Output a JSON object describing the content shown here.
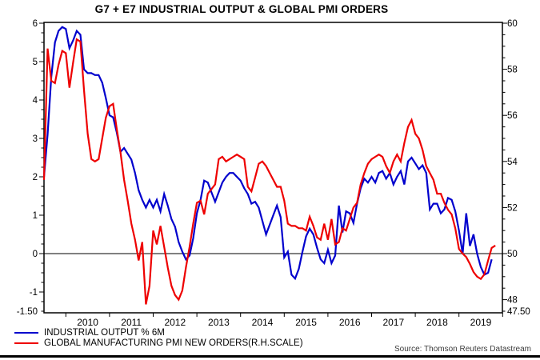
{
  "title": "G7 + E7 INDUSTRIAL OUTPUT & GLOBAL PMI ORDERS",
  "source_note": "Source: Thomson Reuters Datastream",
  "colors": {
    "industrial_output": "#0000cd",
    "pmi_orders": "#ee0000",
    "axis": "#000000",
    "source_text": "#3d3d3d"
  },
  "legend": {
    "items": [
      {
        "label": "INDUSTRIAL OUTPUT % 6M",
        "color": "#0000cd"
      },
      {
        "label": "GLOBAL MANUFACTURING PMI NEW ORDERS(R.H.SCALE)",
        "color": "#ee0000"
      }
    ]
  },
  "chart_data": {
    "type": "line",
    "title": "G7 + E7 INDUSTRIAL OUTPUT & GLOBAL PMI ORDERS",
    "x_start": "2009-07",
    "frequency": "monthly",
    "x_axis": {
      "year_labels": [
        "2010",
        "2011",
        "2012",
        "2013",
        "2014",
        "2015",
        "2016",
        "2017",
        "2018",
        "2019"
      ],
      "grid": false
    },
    "left_axis": {
      "range_bottom": -1.54,
      "range_top": 6.02,
      "major_tick_labels": [
        "6",
        "5",
        "4",
        "3",
        "2",
        "1",
        "0",
        "-1"
      ],
      "bottom_label": "-1.50",
      "minor_step": 0.25
    },
    "right_axis": {
      "range_bottom": 47.43,
      "range_top": 60.03,
      "major_tick_labels": [
        "60",
        "58",
        "56",
        "54",
        "52",
        "50",
        "48"
      ],
      "bottom_label": "47.50",
      "minor_step": 0.5
    },
    "zero_reference_left": 0,
    "series": [
      {
        "name": "INDUSTRIAL OUTPUT % 6M",
        "axis": "left",
        "color": "#0000cd",
        "values": [
          2.0,
          3.1,
          4.6,
          5.5,
          5.8,
          5.9,
          5.85,
          5.35,
          5.55,
          5.8,
          5.7,
          4.8,
          4.7,
          4.7,
          4.65,
          4.65,
          4.45,
          4.05,
          3.6,
          3.55,
          3.15,
          2.65,
          2.75,
          2.6,
          2.45,
          2.1,
          1.65,
          1.4,
          1.2,
          1.4,
          1.2,
          1.4,
          1.1,
          1.55,
          1.25,
          0.9,
          0.7,
          0.3,
          0.05,
          -0.15,
          -0.05,
          0.4,
          1.05,
          1.4,
          1.9,
          1.85,
          1.6,
          1.35,
          1.6,
          1.85,
          2.0,
          2.1,
          2.1,
          2.0,
          1.9,
          1.7,
          1.55,
          1.3,
          1.35,
          1.2,
          0.85,
          0.5,
          0.75,
          1.0,
          1.25,
          0.95,
          -0.1,
          0.05,
          -0.55,
          -0.65,
          -0.4,
          0.05,
          0.45,
          0.65,
          0.5,
          0.15,
          -0.15,
          -0.25,
          0.1,
          -0.25,
          -0.05,
          1.25,
          0.55,
          1.1,
          1.05,
          0.8,
          1.3,
          1.7,
          1.95,
          1.85,
          2.0,
          1.85,
          2.1,
          2.15,
          1.95,
          2.1,
          1.8,
          2.0,
          2.15,
          1.8,
          2.4,
          2.5,
          2.35,
          2.2,
          2.3,
          2.1,
          1.15,
          1.3,
          1.3,
          1.05,
          1.15,
          1.45,
          1.4,
          1.1,
          0.6,
          0.0,
          1.05,
          0.2,
          0.5,
          0.0,
          -0.35,
          -0.55,
          -0.5,
          -0.15
        ]
      },
      {
        "name": "GLOBAL MANUFACTURING PMI NEW ORDERS(R.H.SCALE)",
        "axis": "right",
        "color": "#ee0000",
        "values": [
          53.2,
          58.9,
          57.5,
          57.4,
          58.2,
          58.8,
          58.7,
          57.2,
          58.3,
          59.3,
          59.2,
          57.1,
          55.2,
          54.1,
          54.0,
          54.1,
          55.0,
          55.9,
          56.4,
          56.5,
          55.4,
          54.4,
          53.2,
          52.3,
          51.3,
          50.6,
          49.7,
          50.5,
          47.8,
          48.6,
          51.0,
          50.4,
          51.2,
          50.3,
          49.4,
          48.6,
          48.2,
          48.0,
          48.4,
          49.4,
          50.3,
          51.3,
          52.2,
          52.3,
          51.7,
          52.6,
          52.8,
          53.0,
          54.1,
          54.2,
          54.0,
          54.1,
          54.2,
          54.3,
          54.2,
          54.1,
          52.9,
          52.7,
          53.3,
          53.9,
          54.0,
          53.8,
          53.5,
          53.2,
          52.9,
          52.9,
          52.3,
          51.3,
          51.2,
          51.2,
          51.1,
          51.1,
          51.0,
          51.6,
          51.2,
          50.7,
          50.6,
          51.3,
          50.6,
          51.5,
          50.4,
          50.5,
          51.1,
          51.0,
          51.5,
          52.0,
          52.2,
          53.0,
          53.5,
          53.9,
          54.1,
          54.2,
          54.3,
          54.2,
          53.8,
          53.5,
          54.0,
          54.3,
          54.0,
          54.8,
          55.5,
          55.8,
          55.2,
          55.0,
          54.5,
          53.8,
          53.5,
          53.2,
          52.6,
          52.6,
          52.2,
          51.9,
          51.7,
          51.1,
          50.2,
          50.0,
          49.85,
          49.55,
          49.2,
          49.0,
          48.9,
          49.1,
          49.7,
          50.25,
          50.35
        ]
      }
    ]
  }
}
